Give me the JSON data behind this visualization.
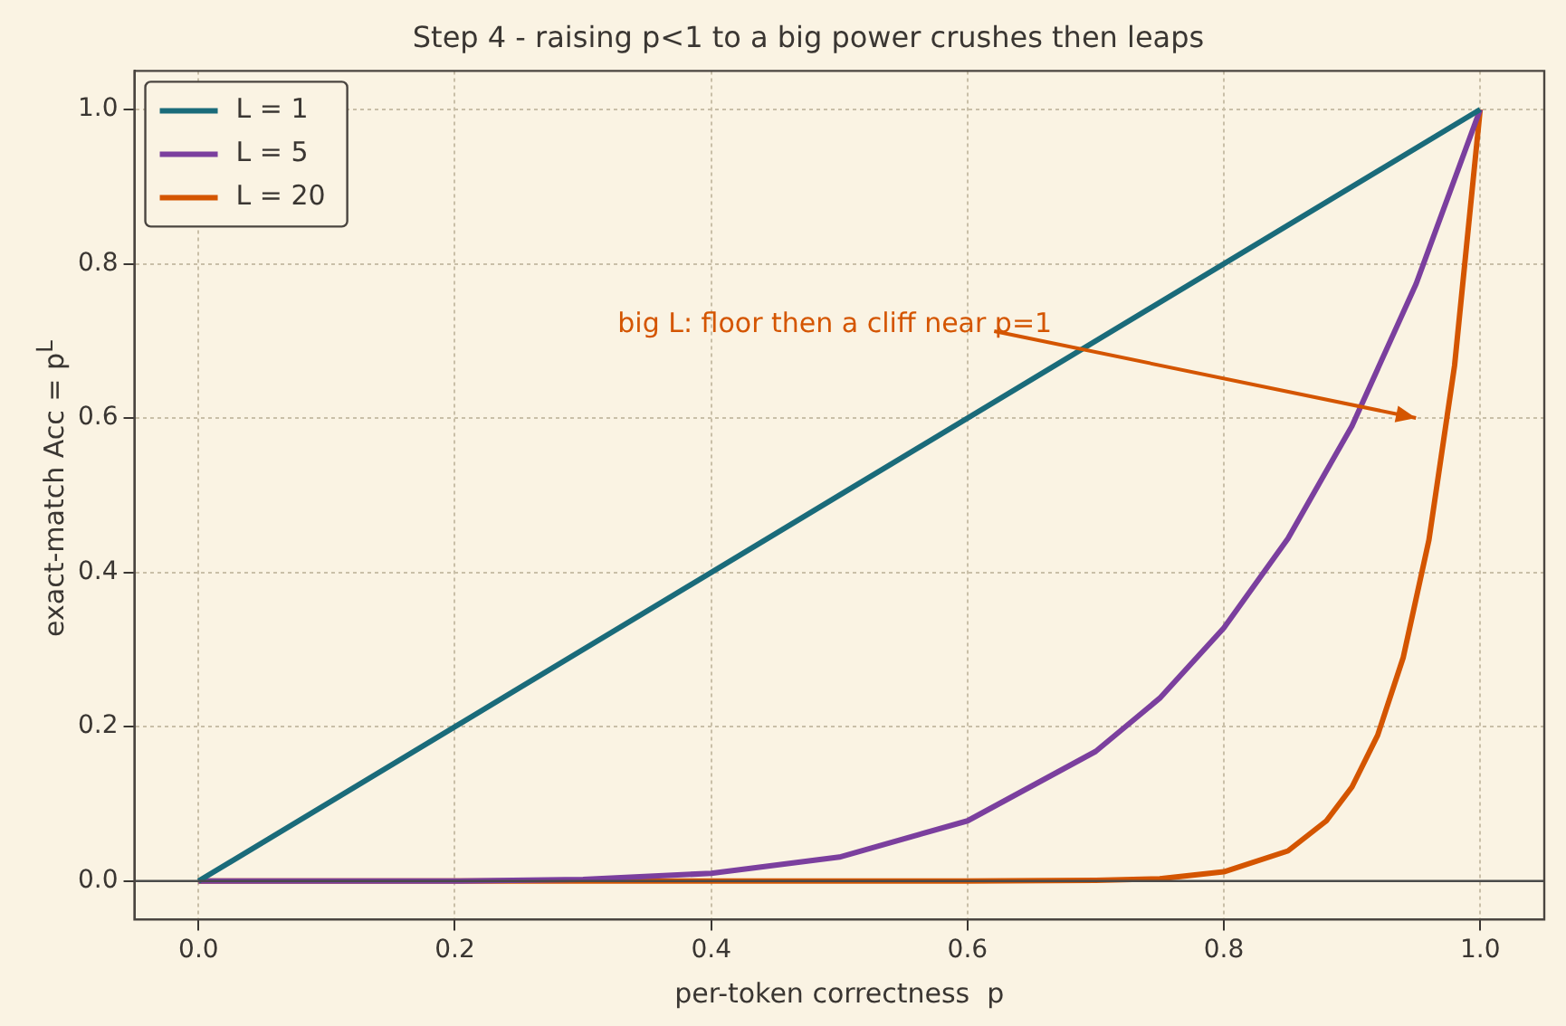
{
  "chart_data": {
    "type": "line",
    "title": "Step 4 - raising p<1 to a big power crushes then leaps",
    "xlabel": "per-token correctness  p",
    "ylabel": "exact-match  Acc = p$^{L}$",
    "xlim": [
      -0.05,
      1.05
    ],
    "ylim": [
      -0.05,
      1.05
    ],
    "xticks": [
      {
        "value": 0,
        "label": "0.0"
      },
      {
        "value": 0.2,
        "label": "0.2"
      },
      {
        "value": 0.4,
        "label": "0.4"
      },
      {
        "value": 0.6,
        "label": "0.6"
      },
      {
        "value": 0.8,
        "label": "0.8"
      },
      {
        "value": 1,
        "label": "1.0"
      }
    ],
    "yticks": [
      {
        "value": 0,
        "label": "0.0"
      },
      {
        "value": 0.2,
        "label": "0.2"
      },
      {
        "value": 0.4,
        "label": "0.4"
      },
      {
        "value": 0.6,
        "label": "0.6"
      },
      {
        "value": 0.8,
        "label": "0.8"
      },
      {
        "value": 1,
        "label": "1.0"
      }
    ],
    "series": [
      {
        "name": "L = 1",
        "color": "#1a6b7a",
        "x": [
          0,
          0.5,
          1
        ],
        "values": [
          0,
          0.5,
          1
        ]
      },
      {
        "name": "L = 5",
        "color": "#7b3f9e",
        "x": [
          0,
          0.2,
          0.3,
          0.4,
          0.5,
          0.6,
          0.7,
          0.75,
          0.8,
          0.85,
          0.9,
          0.95,
          1
        ],
        "values": [
          0,
          0,
          0.002,
          0.01,
          0.031,
          0.078,
          0.168,
          0.237,
          0.328,
          0.444,
          0.59,
          0.774,
          1
        ]
      },
      {
        "name": "L = 20",
        "color": "#d45500",
        "x": [
          0,
          0.6,
          0.7,
          0.75,
          0.8,
          0.85,
          0.88,
          0.9,
          0.92,
          0.94,
          0.96,
          0.98,
          1
        ],
        "values": [
          0,
          0,
          0.001,
          0.003,
          0.012,
          0.039,
          0.078,
          0.122,
          0.189,
          0.29,
          0.442,
          0.668,
          1
        ]
      }
    ],
    "ref_lines": [
      {
        "axis": "y",
        "value": 0,
        "color": "#4a4a4a"
      }
    ],
    "annotations": [
      "big L: floor then a cliff near p=1"
    ],
    "grid": true,
    "legend": "top left",
    "marker": "none",
    "line_style": "solid"
  }
}
